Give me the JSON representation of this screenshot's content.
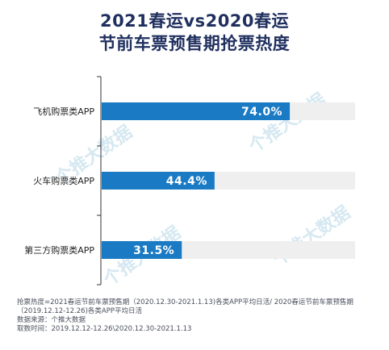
{
  "title_line1": "2021春运vs2020春运",
  "title_line2": "节前车票预售期抢票热度",
  "chart_data": {
    "type": "bar",
    "orientation": "horizontal",
    "categories": [
      "飞机购票类APP",
      "火车购票类APP",
      "第三方购票类APP"
    ],
    "values": [
      74.0,
      44.4,
      31.5
    ],
    "value_labels": [
      "74.0%",
      "44.4%",
      "31.5%"
    ],
    "xlim": [
      0,
      100
    ],
    "grid": false,
    "colors": {
      "bar": "#1a7ac4",
      "track": "#efefef",
      "label_text": "#ffffff",
      "axis": "#333333"
    }
  },
  "footnotes": {
    "line1": "抢票热度=2021春运节前车票预售期（2020.12.30-2021.1.13)各类APP平均日活/  2020春运节前车票预售期",
    "line2": "（2019.12.12-12.26)各类APP平均日活",
    "line3": "数据来源：个推大数据",
    "line4": "取数时间：2019.12.12-12.26\\2020.12.30-2021.1.13"
  },
  "watermark_text": "个推大数据"
}
